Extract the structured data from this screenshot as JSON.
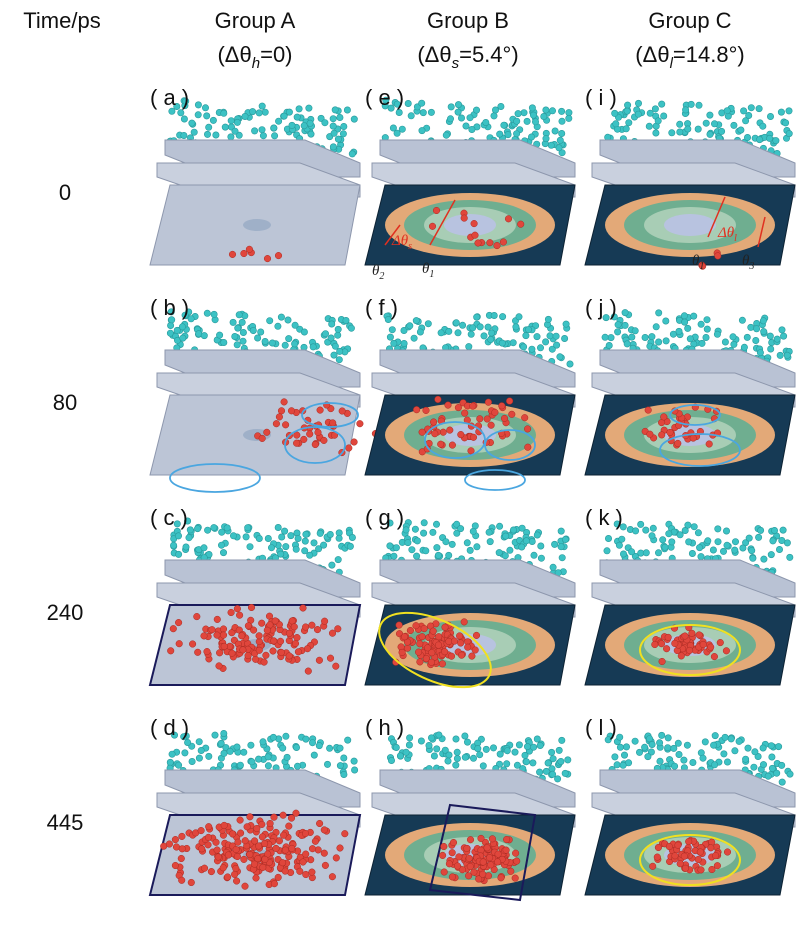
{
  "header": {
    "time_label": "Time/ps",
    "columns": [
      {
        "title": "Group A",
        "subtitle": {
          "prefix": "(Δθ",
          "sub": "h",
          "suffix": "=0)"
        }
      },
      {
        "title": "Group B",
        "subtitle": {
          "prefix": "(Δθ",
          "sub": "s",
          "suffix": "=5.4°)"
        }
      },
      {
        "title": "Group C",
        "subtitle": {
          "prefix": "(Δθ",
          "sub": "l",
          "suffix": "=14.8°)"
        }
      }
    ]
  },
  "rows": [
    {
      "time": "0",
      "panels": [
        "( a )",
        "( e )",
        "( i )"
      ]
    },
    {
      "time": "80",
      "panels": [
        "( b )",
        "( f )",
        "( j )"
      ]
    },
    {
      "time": "240",
      "panels": [
        "( c )",
        "( g )",
        "( k )"
      ]
    },
    {
      "time": "445",
      "panels": [
        "( d )",
        "( h )",
        "( l )"
      ]
    }
  ],
  "annotations": {
    "panel_e": [
      {
        "text": "Δθ",
        "sub": "s"
      },
      {
        "text": "θ",
        "sub": "2"
      },
      {
        "text": "θ",
        "sub": "1"
      }
    ],
    "panel_i": [
      {
        "text": "Δθ",
        "sub": "l"
      },
      {
        "text": "θ",
        "sub": "1"
      },
      {
        "text": "θ",
        "sub": "3"
      }
    ]
  }
}
